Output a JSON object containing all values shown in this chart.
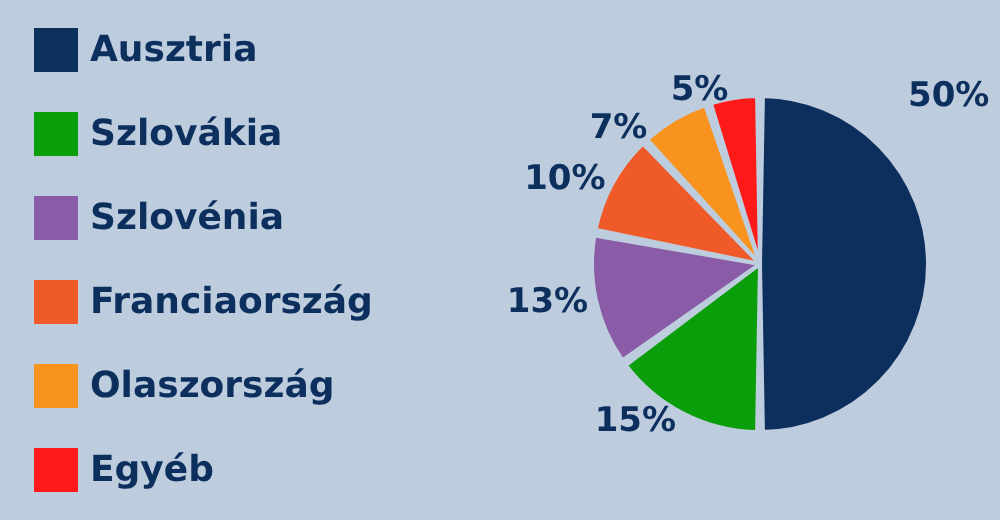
{
  "chart_data": {
    "type": "pie",
    "categories": [
      "Ausztria",
      "Szlovákia",
      "Szlovénia",
      "Franciaország",
      "Olaszország",
      "Egyéb"
    ],
    "values": [
      50,
      15,
      13,
      10,
      7,
      5
    ],
    "colors": [
      "#0d2f5e",
      "#0a9e0a",
      "#8a5ca8",
      "#f05a28",
      "#f7931e",
      "#ff1a1a"
    ],
    "value_labels": [
      "50%",
      "15%",
      "13%",
      "10%",
      "7%",
      "5%"
    ],
    "legend": "left"
  }
}
